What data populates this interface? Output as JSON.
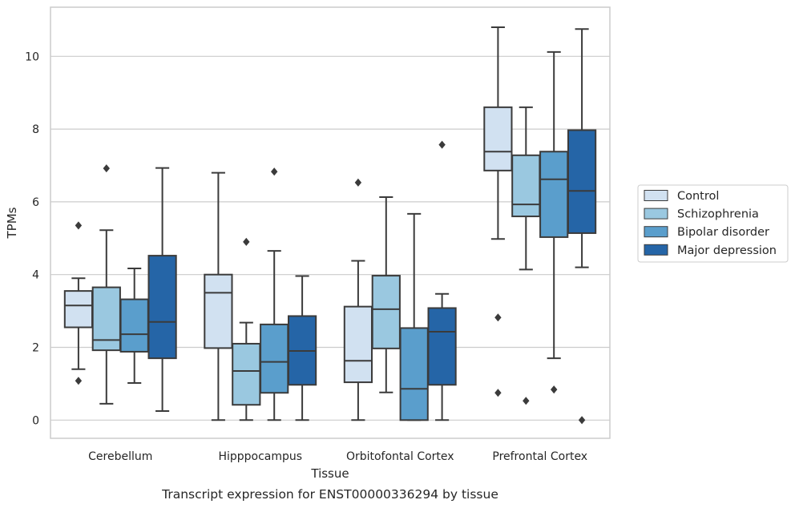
{
  "caption": "Transcript expression for ENST00000336294 by tissue",
  "chart_data": {
    "type": "box",
    "xlabel": "Tissue",
    "ylabel": "TPMs",
    "ylim": [
      -0.5,
      11.35
    ],
    "yticks": [
      0,
      2,
      4,
      6,
      8,
      10
    ],
    "grid": "horizontal",
    "legend_position": "right, outside plot",
    "categories": [
      "Cerebellum",
      "Hipppocampus",
      "Orbitofontal Cortex",
      "Prefrontal Cortex"
    ],
    "series": [
      {
        "name": "Control",
        "color": "#d1e1f1",
        "boxes": [
          {
            "whislo": 1.4,
            "q1": 2.55,
            "med": 3.15,
            "q3": 3.55,
            "whishi": 3.9,
            "fliers": [
              5.35,
              1.08
            ]
          },
          {
            "whislo": 0.0,
            "q1": 1.98,
            "med": 3.5,
            "q3": 4.0,
            "whishi": 6.8,
            "fliers": []
          },
          {
            "whislo": 0.0,
            "q1": 1.04,
            "med": 1.63,
            "q3": 3.12,
            "whishi": 4.38,
            "fliers": [
              6.53
            ]
          },
          {
            "whislo": 4.98,
            "q1": 6.86,
            "med": 7.38,
            "q3": 8.6,
            "whishi": 10.8,
            "fliers": [
              2.82,
              0.75
            ]
          }
        ]
      },
      {
        "name": "Schizophrenia",
        "color": "#9ac8e0",
        "boxes": [
          {
            "whislo": 0.45,
            "q1": 1.92,
            "med": 2.2,
            "q3": 3.65,
            "whishi": 5.22,
            "fliers": [
              6.92
            ]
          },
          {
            "whislo": 0.0,
            "q1": 0.42,
            "med": 1.35,
            "q3": 2.1,
            "whishi": 2.68,
            "fliers": [
              4.9
            ]
          },
          {
            "whislo": 0.76,
            "q1": 1.97,
            "med": 3.05,
            "q3": 3.97,
            "whishi": 6.13,
            "fliers": []
          },
          {
            "whislo": 4.14,
            "q1": 5.6,
            "med": 5.93,
            "q3": 7.28,
            "whishi": 8.6,
            "fliers": [
              0.53
            ]
          }
        ]
      },
      {
        "name": "Bipolar disorder",
        "color": "#5a9ecc",
        "boxes": [
          {
            "whislo": 1.02,
            "q1": 1.88,
            "med": 2.36,
            "q3": 3.32,
            "whishi": 4.17,
            "fliers": []
          },
          {
            "whislo": 0.0,
            "q1": 0.75,
            "med": 1.6,
            "q3": 2.63,
            "whishi": 4.65,
            "fliers": [
              6.83
            ]
          },
          {
            "whislo": 0.0,
            "q1": 0.0,
            "med": 0.86,
            "q3": 2.53,
            "whishi": 5.67,
            "fliers": []
          },
          {
            "whislo": 1.7,
            "q1": 5.03,
            "med": 6.62,
            "q3": 7.38,
            "whishi": 10.12,
            "fliers": [
              0.84
            ]
          }
        ]
      },
      {
        "name": "Major depression",
        "color": "#2565a7",
        "boxes": [
          {
            "whislo": 0.25,
            "q1": 1.7,
            "med": 2.7,
            "q3": 4.52,
            "whishi": 6.93,
            "fliers": []
          },
          {
            "whislo": 0.0,
            "q1": 0.97,
            "med": 1.9,
            "q3": 2.86,
            "whishi": 3.96,
            "fliers": []
          },
          {
            "whislo": 0.0,
            "q1": 0.97,
            "med": 2.43,
            "q3": 3.08,
            "whishi": 3.47,
            "fliers": [
              7.57
            ]
          },
          {
            "whislo": 4.2,
            "q1": 5.14,
            "med": 6.3,
            "q3": 7.97,
            "whishi": 10.75,
            "fliers": [
              0.0
            ]
          }
        ]
      }
    ]
  }
}
